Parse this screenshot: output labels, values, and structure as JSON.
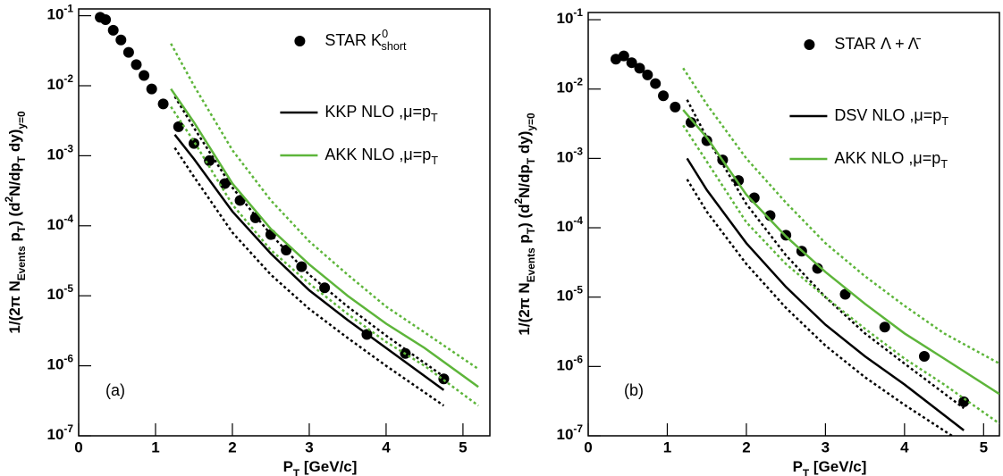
{
  "chart_data": [
    {
      "type": "scatter",
      "panel_label": "(a)",
      "xlabel": [
        [
          "P",
          "normal"
        ],
        [
          "T",
          "sub"
        ],
        [
          " [GeV/c]",
          "normal"
        ]
      ],
      "ylabel": [
        [
          "1/(2π N",
          "normal"
        ],
        [
          "Events",
          "sub"
        ],
        [
          " p",
          "normal"
        ],
        [
          "T",
          "sub"
        ],
        [
          ") (d",
          "normal"
        ],
        [
          "2",
          "sup"
        ],
        [
          "N/dp",
          "normal"
        ],
        [
          "T",
          "sub"
        ],
        [
          " dy)",
          "normal"
        ],
        [
          "y=0",
          "sub"
        ]
      ],
      "xlim": [
        0,
        5.35
      ],
      "xticks": [
        0,
        1,
        2,
        3,
        4,
        5
      ],
      "ylim": [
        1e-07,
        0.125
      ],
      "log_y": true,
      "legend": "upper right",
      "yticks": [
        {
          "value": 1e-07,
          "label": "10",
          "exponent": "-7"
        },
        {
          "value": 1e-06,
          "label": "10",
          "exponent": "-6"
        },
        {
          "value": 1e-05,
          "label": "10",
          "exponent": "-5"
        },
        {
          "value": 0.0001,
          "label": "10",
          "exponent": "-4"
        },
        {
          "value": 0.001,
          "label": "10",
          "exponent": "-3"
        },
        {
          "value": 0.01,
          "label": "10",
          "exponent": "-2"
        },
        {
          "value": 0.1,
          "label": "10",
          "exponent": "-1"
        }
      ],
      "series": [
        {
          "name": [
            [
              "STAR K",
              "normal"
            ],
            [
              "0",
              "sup"
            ],
            [
              "short",
              "sub"
            ]
          ],
          "style": "marker",
          "color": "#000000",
          "x": [
            0.28,
            0.35,
            0.45,
            0.55,
            0.65,
            0.75,
            0.85,
            0.95,
            1.1,
            1.3,
            1.5,
            1.7,
            1.9,
            2.1,
            2.3,
            2.5,
            2.7,
            2.9,
            3.2,
            3.75,
            4.25,
            4.75
          ],
          "values": [
            0.095,
            0.088,
            0.062,
            0.045,
            0.03,
            0.02,
            0.014,
            0.009,
            0.0055,
            0.0026,
            0.0015,
            0.00085,
            0.0004,
            0.00023,
            0.00013,
            7.5e-05,
            4.5e-05,
            2.6e-05,
            1.3e-05,
            2.8e-06,
            1.5e-06,
            6.5e-07
          ]
        },
        {
          "name": [
            [
              "KKP NLO ,μ=p",
              "normal"
            ],
            [
              "T",
              "sub"
            ]
          ],
          "style": "solid",
          "color": "#000000",
          "x": [
            1.25,
            1.5,
            2,
            2.5,
            3,
            3.5,
            4,
            4.75
          ],
          "values": [
            0.002,
            0.0009,
            0.00016,
            4e-05,
            1.2e-05,
            4.5e-06,
            1.8e-06,
            4.5e-07
          ]
        },
        {
          "style": "dotted",
          "color": "#000000",
          "x": [
            1.25,
            1.5,
            2,
            2.5,
            3,
            3.5,
            4,
            4.75
          ],
          "values": [
            0.007,
            0.0025,
            0.00035,
            7.5e-05,
            2e-05,
            7e-06,
            2.7e-06,
            7e-07
          ]
        },
        {
          "style": "dotted",
          "color": "#000000",
          "x": [
            1.25,
            1.5,
            2,
            2.5,
            3,
            3.5,
            4,
            4.75
          ],
          "values": [
            0.0013,
            0.0005,
            8e-05,
            2e-05,
            6.5e-06,
            2.5e-06,
            1e-06,
            2.7e-07
          ]
        },
        {
          "name": [
            [
              "AKK NLO ,μ=p",
              "normal"
            ],
            [
              "T",
              "sub"
            ]
          ],
          "style": "solid",
          "color": "#5db53a",
          "x": [
            1.2,
            1.5,
            2,
            2.5,
            3,
            3.5,
            4,
            4.5,
            5.2
          ],
          "values": [
            0.009,
            0.003,
            0.0004,
            9e-05,
            2.8e-05,
            1e-05,
            4e-06,
            1.8e-06,
            5e-07
          ]
        },
        {
          "style": "dotted",
          "color": "#5db53a",
          "x": [
            1.2,
            1.5,
            2,
            2.5,
            3,
            3.5,
            4,
            4.5,
            5.2
          ],
          "values": [
            0.04,
            0.01,
            0.0012,
            0.00023,
            6e-05,
            2e-05,
            7e-06,
            3e-06,
            9e-07
          ]
        },
        {
          "style": "dotted",
          "color": "#5db53a",
          "x": [
            1.2,
            1.5,
            2,
            2.5,
            3,
            3.5,
            4,
            4.5,
            5.2
          ],
          "values": [
            0.005,
            0.0016,
            0.0002,
            4.5e-05,
            1.5e-05,
            5.5e-06,
            2.2e-06,
            1e-06,
            2.7e-07
          ]
        }
      ]
    },
    {
      "type": "scatter",
      "panel_label": "(b)",
      "xlabel": [
        [
          "P",
          "normal"
        ],
        [
          "T",
          "sub"
        ],
        [
          " [GeV/c]",
          "normal"
        ]
      ],
      "ylabel": [
        [
          "1/(2π N",
          "normal"
        ],
        [
          "Events",
          "sub"
        ],
        [
          " p",
          "normal"
        ],
        [
          "T",
          "sub"
        ],
        [
          ") (d",
          "normal"
        ],
        [
          "2",
          "sup"
        ],
        [
          "N/dp",
          "normal"
        ],
        [
          "T",
          "sub"
        ],
        [
          " dy)",
          "normal"
        ],
        [
          "y=0",
          "sub"
        ]
      ],
      "xlim": [
        0,
        5.2
      ],
      "xticks": [
        0,
        1,
        2,
        3,
        4,
        5
      ],
      "ylim": [
        1e-07,
        0.127
      ],
      "log_y": true,
      "legend": "upper right",
      "yticks": [
        {
          "value": 1e-07,
          "label": "10",
          "exponent": "-7"
        },
        {
          "value": 1e-06,
          "label": "10",
          "exponent": "-6"
        },
        {
          "value": 1e-05,
          "label": "10",
          "exponent": "-5"
        },
        {
          "value": 0.0001,
          "label": "10",
          "exponent": "-4"
        },
        {
          "value": 0.001,
          "label": "10",
          "exponent": "-3"
        },
        {
          "value": 0.01,
          "label": "10",
          "exponent": "-2"
        },
        {
          "value": 0.1,
          "label": "10",
          "exponent": "-1"
        }
      ],
      "series": [
        {
          "name": [
            [
              "STAR Λ + Λ̄",
              "normal"
            ]
          ],
          "style": "marker",
          "color": "#000000",
          "x": [
            0.35,
            0.45,
            0.55,
            0.65,
            0.75,
            0.85,
            0.95,
            1.1,
            1.3,
            1.5,
            1.7,
            1.9,
            2.1,
            2.3,
            2.5,
            2.7,
            2.9,
            3.25,
            3.75,
            4.25,
            4.75
          ],
          "values": [
            0.027,
            0.03,
            0.024,
            0.02,
            0.016,
            0.012,
            0.008,
            0.0055,
            0.0033,
            0.0018,
            0.00095,
            0.00048,
            0.00027,
            0.00015,
            7.8e-05,
            4.6e-05,
            2.6e-05,
            1.1e-05,
            3.7e-06,
            1.4e-06,
            3.1e-07
          ]
        },
        {
          "name": [
            [
              "DSV NLO ,μ=p",
              "normal"
            ],
            [
              "T",
              "sub"
            ]
          ],
          "style": "solid",
          "color": "#000000",
          "x": [
            1.25,
            1.5,
            2,
            2.5,
            3,
            3.5,
            4,
            4.75
          ],
          "values": [
            0.001,
            0.00035,
            6e-05,
            1.4e-05,
            4e-06,
            1.4e-06,
            5.5e-07,
            1.2e-07
          ]
        },
        {
          "style": "dotted",
          "color": "#000000",
          "x": [
            1.25,
            1.5,
            2,
            2.5,
            3,
            3.5,
            4,
            4.75
          ],
          "values": [
            0.007,
            0.002,
            0.00022,
            4e-05,
            1e-05,
            3e-06,
            1.1e-06,
            2.5e-07
          ]
        },
        {
          "style": "dotted",
          "color": "#000000",
          "x": [
            1.25,
            1.5,
            2,
            2.5,
            3,
            3.5,
            4,
            4.6
          ],
          "values": [
            0.0005,
            0.00017,
            3e-05,
            7e-06,
            2e-06,
            7e-07,
            2.8e-07,
            1e-07
          ]
        },
        {
          "name": [
            [
              "AKK NLO ,μ=p",
              "normal"
            ],
            [
              "T",
              "sub"
            ]
          ],
          "style": "solid",
          "color": "#5db53a",
          "x": [
            1.2,
            1.5,
            2,
            2.5,
            3,
            3.5,
            4,
            4.5,
            5.2
          ],
          "values": [
            0.005,
            0.002,
            0.0003,
            7.5e-05,
            2.3e-05,
            8e-06,
            3e-06,
            1.3e-06,
            4e-07
          ]
        },
        {
          "style": "dotted",
          "color": "#5db53a",
          "x": [
            1.2,
            1.5,
            2,
            2.5,
            3,
            3.5,
            4,
            4.5,
            5.2
          ],
          "values": [
            0.02,
            0.006,
            0.001,
            0.00023,
            6e-05,
            2e-05,
            7.5e-06,
            3e-06,
            1.1e-06
          ]
        },
        {
          "style": "dotted",
          "color": "#5db53a",
          "x": [
            1.2,
            1.5,
            2,
            2.5,
            3,
            3.5,
            4,
            4.5,
            5.2
          ],
          "values": [
            0.003,
            0.0009,
            0.00012,
            3e-05,
            1e-05,
            3.5e-06,
            1.3e-06,
            5.5e-07,
            1.5e-07
          ]
        }
      ]
    }
  ]
}
